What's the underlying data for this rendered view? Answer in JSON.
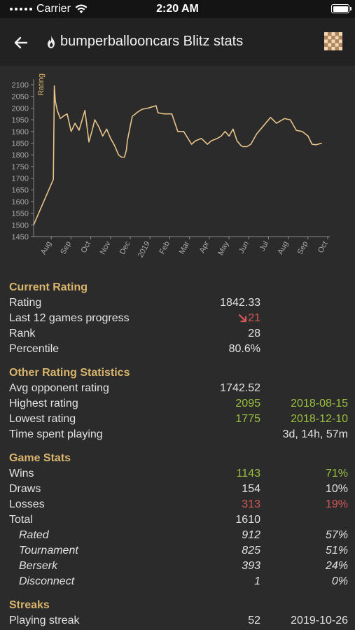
{
  "status_bar": {
    "carrier": "Carrier",
    "time": "2:20 AM"
  },
  "header": {
    "title": "bumperballooncars Blitz stats",
    "back_icon": "arrow-left-icon",
    "flame_icon": "flame-icon",
    "board_icon": "chessboard-icon"
  },
  "colors": {
    "accent": "#d8b46c",
    "positive": "#9bbf3e",
    "negative": "#d35757",
    "line": "#e8c38a"
  },
  "chart_data": {
    "type": "line",
    "ylabel": "Rating",
    "ylim": [
      1450,
      2100
    ],
    "yticks": [
      2100,
      2050,
      2000,
      1950,
      1900,
      1850,
      1800,
      1750,
      1700,
      1650,
      1600,
      1550,
      1500,
      1450
    ],
    "xticks": [
      "Aug",
      "Sep",
      "Oct",
      "Nov",
      "Dec",
      "2019",
      "Feb",
      "Mar",
      "Apr",
      "May",
      "Jun",
      "Jul",
      "Aug",
      "Sep",
      "Oct"
    ],
    "grid": false,
    "series": [
      {
        "x": [
          0,
          1.0,
          1.05,
          1.1,
          1.2,
          1.35,
          1.5,
          1.7,
          1.9,
          2.1,
          2.3,
          2.6,
          2.8,
          2.95,
          3.1,
          3.3,
          3.5,
          3.7,
          3.9,
          4.1,
          4.3,
          4.45,
          4.6,
          4.7,
          4.75,
          4.9,
          5.0,
          5.3,
          5.5,
          5.8,
          6.0,
          6.2,
          6.3,
          6.6,
          7.0,
          7.3,
          7.6,
          8.0,
          8.2,
          8.5,
          8.8,
          9.0,
          9.3,
          9.5,
          9.7,
          9.9,
          10.1,
          10.3,
          10.5,
          10.6,
          10.8,
          11.0,
          11.3,
          11.7,
          12.0,
          12.3,
          12.7,
          13.0,
          13.3,
          13.6,
          13.9,
          14.1,
          14.3,
          14.6
        ],
        "y": [
          1500,
          1695,
          2095,
          2030,
          1990,
          1955,
          1965,
          1975,
          1900,
          1935,
          1905,
          1990,
          1855,
          1900,
          1950,
          1920,
          1880,
          1910,
          1870,
          1840,
          1800,
          1790,
          1790,
          1820,
          1860,
          1925,
          1965,
          1985,
          1995,
          2000,
          2005,
          2010,
          1980,
          1975,
          1975,
          1900,
          1900,
          1845,
          1860,
          1870,
          1845,
          1860,
          1870,
          1880,
          1900,
          1880,
          1910,
          1860,
          1840,
          1835,
          1835,
          1845,
          1890,
          1930,
          1960,
          1935,
          1955,
          1950,
          1905,
          1900,
          1880,
          1845,
          1843,
          1850
        ]
      }
    ]
  },
  "sections": {
    "current": {
      "title": "Current Rating",
      "rows": [
        {
          "label": "Rating",
          "value": "1842.33"
        },
        {
          "label": "Last 12 games progress",
          "value": "21",
          "icon": "arrow-down-right-icon"
        },
        {
          "label": "Rank",
          "value": "28"
        },
        {
          "label": "Percentile",
          "value": "80.6%"
        }
      ]
    },
    "other": {
      "title": "Other Rating Statistics",
      "rows": [
        {
          "label": "Avg opponent rating",
          "value": "1742.52"
        },
        {
          "label": "Highest rating",
          "value": "2095",
          "date": "2018-08-15"
        },
        {
          "label": "Lowest rating",
          "value": "1775",
          "date": "2018-12-10"
        },
        {
          "label": "Time spent playing",
          "value": "3d, 14h, 57m"
        }
      ]
    },
    "games": {
      "title": "Game Stats",
      "rows": [
        {
          "label": "Wins",
          "count": "1143",
          "pct": "71%"
        },
        {
          "label": "Draws",
          "count": "154",
          "pct": "10%"
        },
        {
          "label": "Losses",
          "count": "313",
          "pct": "19%"
        },
        {
          "label": "Total",
          "count": "1610"
        },
        {
          "label": "Rated",
          "count": "912",
          "pct": "57%"
        },
        {
          "label": "Tournament",
          "count": "825",
          "pct": "51%"
        },
        {
          "label": "Berserk",
          "count": "393",
          "pct": "24%"
        },
        {
          "label": "Disconnect",
          "count": "1",
          "pct": "0%"
        }
      ]
    },
    "streaks": {
      "title": "Streaks",
      "rows": [
        {
          "label": "Playing streak",
          "value": "52",
          "date": "2019-10-26"
        }
      ]
    }
  }
}
